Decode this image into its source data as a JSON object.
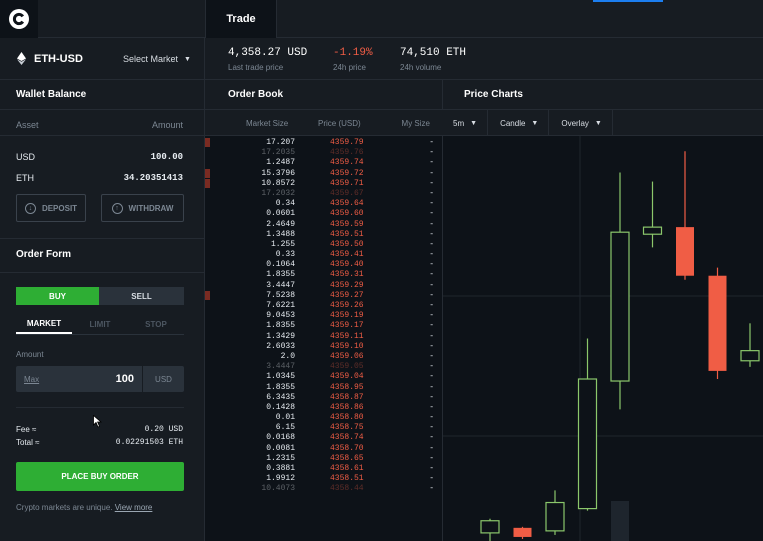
{
  "header": {
    "tab_trade": "Trade"
  },
  "market": {
    "pair": "ETH-USD",
    "select_market": "Select Market",
    "last_price": "4,358.27 USD",
    "last_price_label": "Last trade price",
    "change": "-1.19%",
    "change_label": "24h price",
    "volume": "74,510 ETH",
    "volume_label": "24h volume"
  },
  "wallet": {
    "title": "Wallet Balance",
    "col_asset": "Asset",
    "col_amount": "Amount",
    "usd_label": "USD",
    "usd_amount": "100.00",
    "eth_label": "ETH",
    "eth_amount": "34.20351413",
    "deposit": "DEPOSIT",
    "withdraw": "WITHDRAW"
  },
  "order_form": {
    "title": "Order Form",
    "buy": "BUY",
    "sell": "SELL",
    "tab_market": "MARKET",
    "tab_limit": "LIMIT",
    "tab_stop": "STOP",
    "amount_label": "Amount",
    "max_label": "Max",
    "amount_value": "100",
    "amount_unit": "USD",
    "fee_label": "Fee ≈",
    "fee_value": "0.20 USD",
    "total_label": "Total ≈",
    "total_value": "0.02291503 ETH",
    "place_button": "PLACE BUY ORDER",
    "note": "Crypto markets are unique.",
    "view_more": "View more"
  },
  "order_book": {
    "title": "Order Book",
    "col_size": "Market Size",
    "col_price": "Price (USD)",
    "col_my": "My Size",
    "rows": [
      {
        "size": "17.207",
        "price": "4359.79",
        "my": "-",
        "bar": true
      },
      {
        "size": "17.2035",
        "price": "4359.76",
        "my": "-",
        "dim": true
      },
      {
        "size": "1.2487",
        "price": "4359.74",
        "my": "-"
      },
      {
        "size": "15.3796",
        "price": "4359.72",
        "my": "-",
        "bar": true
      },
      {
        "size": "10.8572",
        "price": "4359.71",
        "my": "-",
        "bar": true
      },
      {
        "size": "17.2032",
        "price": "4359.67",
        "my": "-",
        "dim": true
      },
      {
        "size": "0.34",
        "price": "4359.64",
        "my": "-"
      },
      {
        "size": "0.0601",
        "price": "4359.60",
        "my": "-"
      },
      {
        "size": "2.4649",
        "price": "4359.59",
        "my": "-"
      },
      {
        "size": "1.3488",
        "price": "4359.51",
        "my": "-"
      },
      {
        "size": "1.255",
        "price": "4359.50",
        "my": "-"
      },
      {
        "size": "0.33",
        "price": "4359.41",
        "my": "-"
      },
      {
        "size": "0.1064",
        "price": "4359.40",
        "my": "-"
      },
      {
        "size": "1.8355",
        "price": "4359.31",
        "my": "-"
      },
      {
        "size": "3.4447",
        "price": "4359.29",
        "my": "-"
      },
      {
        "size": "7.5238",
        "price": "4359.27",
        "my": "-",
        "bar": true
      },
      {
        "size": "7.6221",
        "price": "4359.26",
        "my": "-"
      },
      {
        "size": "9.0453",
        "price": "4359.19",
        "my": "-"
      },
      {
        "size": "1.8355",
        "price": "4359.17",
        "my": "-"
      },
      {
        "size": "1.3429",
        "price": "4359.11",
        "my": "-"
      },
      {
        "size": "2.6033",
        "price": "4359.10",
        "my": "-"
      },
      {
        "size": "2.0",
        "price": "4359.06",
        "my": "-"
      },
      {
        "size": "3.4447",
        "price": "4359.05",
        "my": "-",
        "dim": true
      },
      {
        "size": "1.0345",
        "price": "4359.04",
        "my": "-"
      },
      {
        "size": "1.8355",
        "price": "4358.95",
        "my": "-"
      },
      {
        "size": "6.3435",
        "price": "4358.87",
        "my": "-"
      },
      {
        "size": "0.1428",
        "price": "4358.86",
        "my": "-"
      },
      {
        "size": "0.01",
        "price": "4358.80",
        "my": "-"
      },
      {
        "size": "6.15",
        "price": "4358.75",
        "my": "-"
      },
      {
        "size": "0.0168",
        "price": "4358.74",
        "my": "-"
      },
      {
        "size": "0.0081",
        "price": "4358.70",
        "my": "-"
      },
      {
        "size": "1.2315",
        "price": "4358.65",
        "my": "-"
      },
      {
        "size": "0.3881",
        "price": "4358.61",
        "my": "-"
      },
      {
        "size": "1.9912",
        "price": "4358.51",
        "my": "-"
      },
      {
        "size": "10.4073",
        "price": "4358.44",
        "my": "-",
        "dim": true
      }
    ]
  },
  "charts": {
    "title": "Price Charts",
    "interval": "5m",
    "style": "Candle",
    "overlay": "Overlay",
    "candles": [
      {
        "o": 20,
        "c": 8,
        "h": 22,
        "l": 0,
        "up": true
      },
      {
        "o": 13,
        "c": 4,
        "h": 14,
        "l": 2,
        "up": false
      },
      {
        "o": 10,
        "c": 38,
        "h": 50,
        "l": 6,
        "up": true
      },
      {
        "o": 32,
        "c": 160,
        "h": 200,
        "l": 30,
        "up": true
      },
      {
        "o": 158,
        "c": 305,
        "h": 364,
        "l": 130,
        "up": true
      },
      {
        "o": 303,
        "c": 310,
        "h": 355,
        "l": 290,
        "up": true
      },
      {
        "o": 310,
        "c": 262,
        "h": 385,
        "l": 258,
        "up": false
      },
      {
        "o": 262,
        "c": 168,
        "h": 270,
        "l": 160,
        "up": false
      },
      {
        "o": 178,
        "c": 188,
        "h": 215,
        "l": 172,
        "up": true
      }
    ],
    "volume_bars": [
      0,
      0,
      0,
      0,
      40,
      0,
      0,
      0,
      0
    ]
  }
}
